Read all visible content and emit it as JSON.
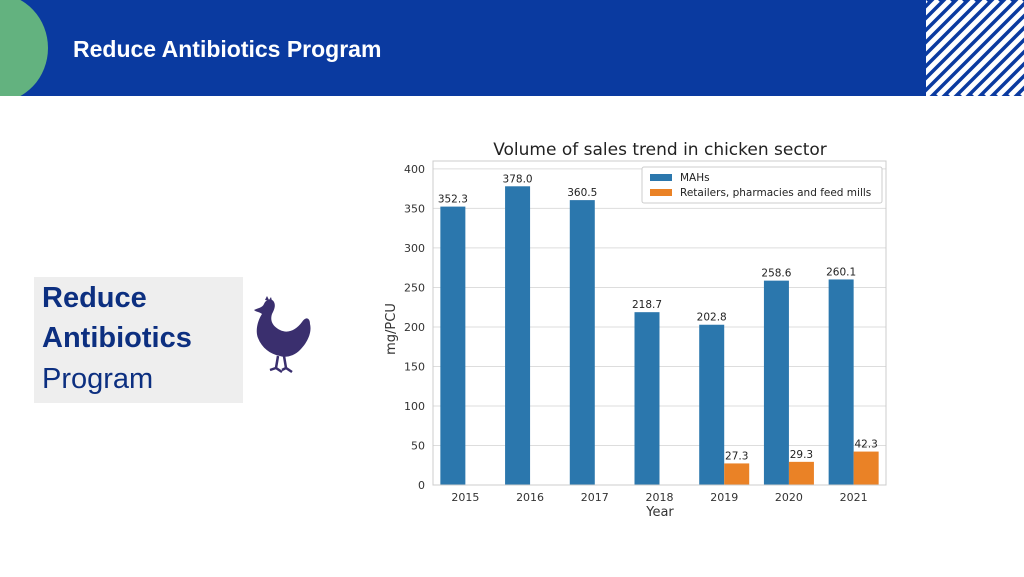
{
  "header": {
    "title": "Reduce Antibiotics Program"
  },
  "sidebar_card": {
    "line1": "Reduce",
    "line2": "Antibiotics",
    "line3": "Program"
  },
  "icons": {
    "decor": "chicken-icon"
  },
  "colors": {
    "header_bg": "#0a3aa0",
    "accent_circle": "#63b27f",
    "card_text": "#0c2f80",
    "mahs": "#2b77ad",
    "retailers": "#ea8226"
  },
  "chart_data": {
    "type": "bar",
    "title": "Volume of sales trend in chicken sector",
    "xlabel": "Year",
    "ylabel": "mg/PCU",
    "ylim": [
      0,
      410
    ],
    "yticks": [
      0,
      50,
      100,
      150,
      200,
      250,
      300,
      350,
      400
    ],
    "grid": true,
    "legend_position": "top-right",
    "categories": [
      "2015",
      "2016",
      "2017",
      "2018",
      "2019",
      "2020",
      "2021"
    ],
    "series": [
      {
        "name": "MAHs",
        "color": "#2b77ad",
        "values": [
          352.3,
          378.0,
          360.5,
          218.7,
          202.8,
          258.6,
          260.1
        ],
        "labels": [
          "352.3",
          "378.0",
          "360.5",
          "218.7",
          "202.8",
          "258.6",
          "260.1"
        ]
      },
      {
        "name": "Retailers, pharmacies and feed mills",
        "color": "#ea8226",
        "values": [
          null,
          null,
          null,
          null,
          27.3,
          29.3,
          42.3
        ],
        "labels": [
          "",
          "",
          "",
          "",
          "27.3",
          "29.3",
          "42.3"
        ]
      }
    ]
  }
}
